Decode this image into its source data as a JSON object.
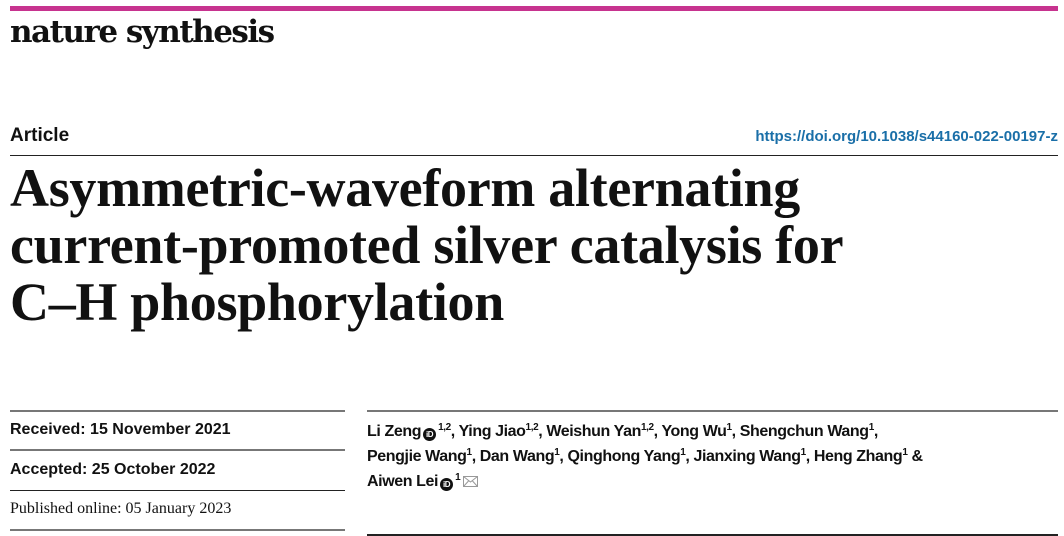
{
  "journal": {
    "name": "nature synthesis",
    "brand_color": "#c7338f"
  },
  "article": {
    "type": "Article",
    "doi": "https://doi.org/10.1038/s44160-022-00197-z",
    "doi_color": "#1a6fa8",
    "title_lines": [
      "Asymmetric-waveform alternating",
      "current-promoted silver catalysis for",
      "C–H phosphorylation"
    ]
  },
  "dates": {
    "received": "Received: 15 November 2021",
    "accepted": "Accepted: 25 October 2022",
    "published": "Published online: 05 January 2023"
  },
  "authors": [
    {
      "name": "Li Zeng",
      "orcid": true,
      "aff": "1,2"
    },
    {
      "name": "Ying Jiao",
      "aff": "1,2"
    },
    {
      "name": "Weishun Yan",
      "aff": "1,2"
    },
    {
      "name": "Yong Wu",
      "aff": "1"
    },
    {
      "name": "Shengchun Wang",
      "aff": "1"
    },
    {
      "name": "Pengjie Wang",
      "aff": "1"
    },
    {
      "name": "Dan Wang",
      "aff": "1"
    },
    {
      "name": "Qinghong Yang",
      "aff": "1"
    },
    {
      "name": "Jianxing Wang",
      "aff": "1"
    },
    {
      "name": "Heng Zhang",
      "aff": "1"
    },
    {
      "name": "Aiwen Lei",
      "orcid": true,
      "aff": "1",
      "corresponding": true
    }
  ],
  "icons": {
    "orcid": "orcid-icon",
    "orcid_label": "iD",
    "mail": "envelope-icon"
  }
}
